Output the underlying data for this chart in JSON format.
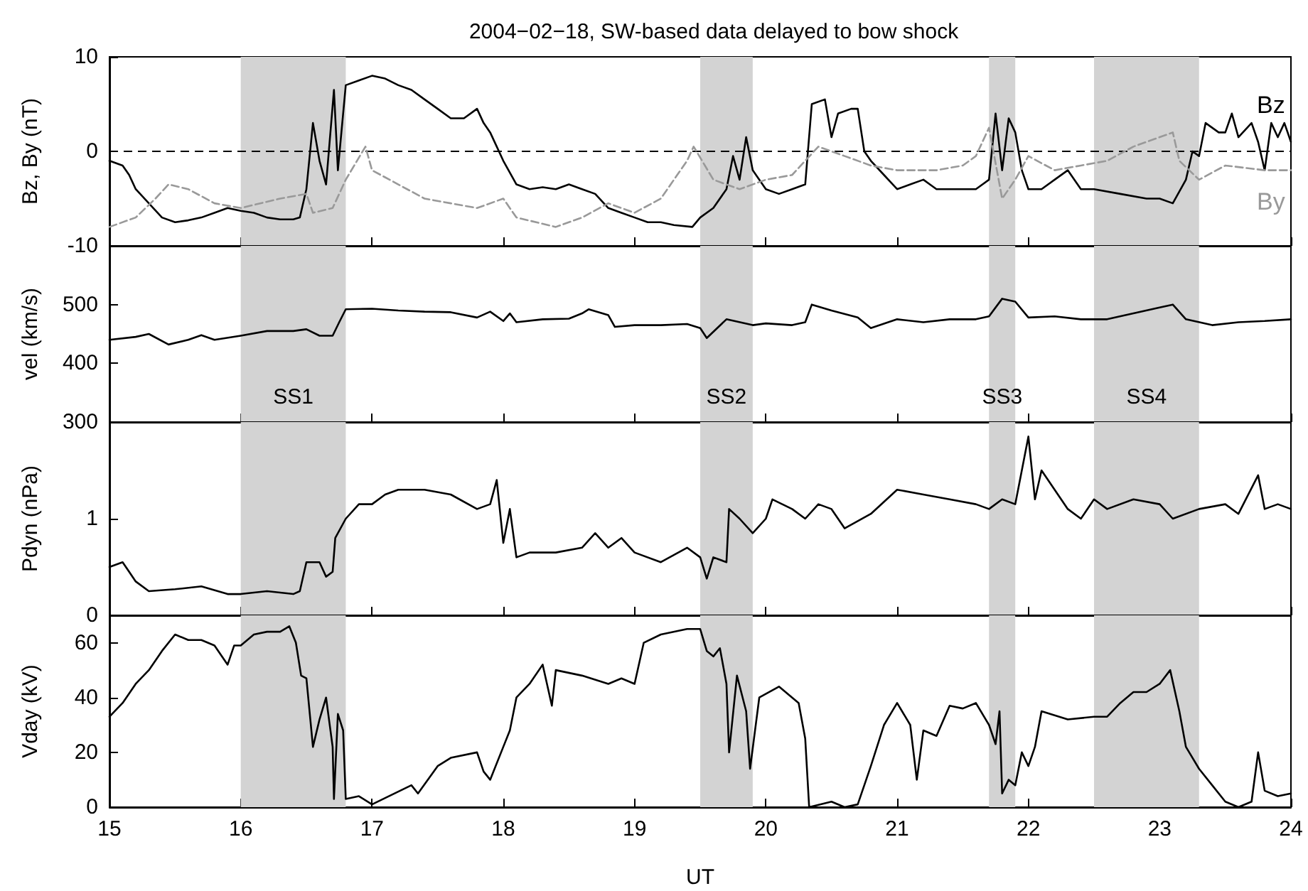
{
  "chart_data": [
    {
      "type": "line",
      "title": "2004−02−18, SW-based data delayed to bow shock",
      "ylabel": "Bz, By (nT)",
      "xlim": [
        15,
        24
      ],
      "xticks": [
        15,
        16,
        17,
        18,
        19,
        20,
        21,
        22,
        23,
        24
      ],
      "ylim": [
        -10,
        10
      ],
      "yticks": [
        -10,
        0,
        10
      ],
      "tick_labels": "y",
      "ref_lines": [
        {
          "axis": "y",
          "value": 0,
          "color": "#000000",
          "line_style": "dashed"
        }
      ],
      "bands": [
        {
          "axis": "x",
          "from": 16.0,
          "to": 16.8,
          "color": "#d3d3d3"
        },
        {
          "axis": "x",
          "from": 19.5,
          "to": 19.9,
          "color": "#d3d3d3"
        },
        {
          "axis": "x",
          "from": 21.7,
          "to": 21.9,
          "color": "#d3d3d3"
        },
        {
          "axis": "x",
          "from": 22.5,
          "to": 23.3,
          "color": "#d3d3d3"
        }
      ],
      "series": [
        {
          "name": "Bz",
          "color": "#000000",
          "x": [
            15.0,
            15.1,
            15.15,
            15.2,
            15.3,
            15.4,
            15.5,
            15.6,
            15.7,
            15.8,
            15.9,
            16.0,
            16.1,
            16.2,
            16.3,
            16.4,
            16.45,
            16.5,
            16.55,
            16.6,
            16.65,
            16.71,
            16.74,
            16.8,
            16.9,
            17.0,
            17.1,
            17.2,
            17.3,
            17.4,
            17.5,
            17.6,
            17.7,
            17.8,
            17.85,
            17.9,
            18.0,
            18.1,
            18.2,
            18.3,
            18.4,
            18.5,
            18.6,
            18.7,
            18.8,
            18.9,
            19.0,
            19.1,
            19.2,
            19.3,
            19.44,
            19.5,
            19.6,
            19.7,
            19.75,
            19.8,
            19.85,
            19.9,
            20.0,
            20.1,
            20.2,
            20.3,
            20.35,
            20.45,
            20.5,
            20.55,
            20.65,
            20.7,
            20.75,
            20.8,
            20.9,
            21.0,
            21.1,
            21.2,
            21.3,
            21.5,
            21.6,
            21.7,
            21.75,
            21.8,
            21.85,
            21.9,
            21.95,
            22.0,
            22.1,
            22.2,
            22.3,
            22.4,
            22.5,
            22.7,
            22.9,
            23.0,
            23.1,
            23.2,
            23.25,
            23.3,
            23.35,
            23.45,
            23.5,
            23.55,
            23.6,
            23.7,
            23.75,
            23.8,
            23.85,
            23.9,
            23.95,
            24.0
          ],
          "values": [
            -1,
            -1.5,
            -2.5,
            -4,
            -5.5,
            -7,
            -7.5,
            -7.3,
            -7,
            -6.5,
            -6,
            -6.3,
            -6.5,
            -7,
            -7.2,
            -7.2,
            -7,
            -4,
            3,
            -1,
            -3.5,
            6.5,
            -2,
            7,
            7.5,
            8,
            7.7,
            7,
            6.5,
            5.5,
            4.5,
            3.5,
            3.5,
            4.5,
            3,
            2,
            -1,
            -3.5,
            -4,
            -3.8,
            -4,
            -3.5,
            -4,
            -4.5,
            -6,
            -6.5,
            -7,
            -7.5,
            -7.5,
            -7.8,
            -8,
            -7,
            -6,
            -4,
            -0.5,
            -3,
            1.5,
            -2,
            -4,
            -4.5,
            -4,
            -3.5,
            5,
            5.5,
            1.5,
            4,
            4.5,
            4.5,
            0,
            -1,
            -2.5,
            -4,
            -3.5,
            -3,
            -4,
            -4,
            -4,
            -3,
            4,
            -2,
            3.5,
            2,
            -2,
            -4,
            -4,
            -3,
            -2,
            -4,
            -4,
            -4.5,
            -5,
            -5,
            -5.5,
            -3,
            0,
            -0.5,
            3,
            2,
            2,
            4,
            1.5,
            3,
            1,
            -2,
            3,
            1.5,
            3,
            1
          ]
        },
        {
          "name": "By",
          "color": "#999999",
          "line_style": "dashed",
          "x": [
            15.0,
            15.2,
            15.35,
            15.45,
            15.6,
            15.8,
            16.0,
            16.3,
            16.5,
            16.55,
            16.7,
            16.8,
            16.95,
            17.0,
            17.2,
            17.4,
            17.6,
            17.8,
            18.0,
            18.1,
            18.4,
            18.6,
            18.8,
            19.0,
            19.2,
            19.4,
            19.45,
            19.6,
            19.8,
            20.0,
            20.2,
            20.3,
            20.4,
            20.6,
            20.8,
            21.0,
            21.3,
            21.5,
            21.6,
            21.7,
            21.8,
            21.9,
            22.0,
            22.2,
            22.4,
            22.6,
            22.8,
            23.0,
            23.1,
            23.15,
            23.3,
            23.5,
            23.8,
            24.0
          ],
          "values": [
            -8,
            -7,
            -5,
            -3.5,
            -4,
            -5.5,
            -6,
            -5,
            -4.5,
            -6.5,
            -6,
            -3,
            0.5,
            -2,
            -3.5,
            -5,
            -5.5,
            -6,
            -5,
            -7,
            -8,
            -7,
            -5.5,
            -6.5,
            -5,
            -1,
            0.5,
            -3,
            -4,
            -3,
            -2.5,
            -1,
            0.5,
            -0.5,
            -1.5,
            -2,
            -2,
            -1.5,
            -0.5,
            2.5,
            -5,
            -3,
            -0.5,
            -2,
            -1.5,
            -1,
            0.5,
            1.5,
            2,
            -1,
            -3,
            -1.5,
            -2,
            -2
          ]
        }
      ]
    },
    {
      "type": "line",
      "ylabel": "vel (km/s)",
      "xlim": [
        15,
        24
      ],
      "xticks": [
        15,
        16,
        17,
        18,
        19,
        20,
        21,
        22,
        23,
        24
      ],
      "ylim": [
        300,
        600
      ],
      "yticks": [
        300,
        400,
        500
      ],
      "tick_labels": "y",
      "bands": [
        {
          "axis": "x",
          "from": 16.0,
          "to": 16.8,
          "label": "SS1",
          "color": "#d3d3d3"
        },
        {
          "axis": "x",
          "from": 19.5,
          "to": 19.9,
          "label": "SS2",
          "color": "#d3d3d3"
        },
        {
          "axis": "x",
          "from": 21.7,
          "to": 21.9,
          "label": "SS3",
          "color": "#d3d3d3"
        },
        {
          "axis": "x",
          "from": 22.5,
          "to": 23.3,
          "label": "SS4",
          "color": "#d3d3d3"
        }
      ],
      "series": [
        {
          "color": "#000000",
          "x": [
            15.0,
            15.2,
            15.3,
            15.45,
            15.6,
            15.7,
            15.8,
            16.0,
            16.2,
            16.4,
            16.5,
            16.6,
            16.7,
            16.75,
            16.8,
            17.0,
            17.2,
            17.4,
            17.6,
            17.8,
            17.9,
            18.0,
            18.05,
            18.1,
            18.3,
            18.5,
            18.6,
            18.65,
            18.8,
            18.85,
            19.0,
            19.2,
            19.4,
            19.5,
            19.55,
            19.7,
            19.9,
            20.0,
            20.2,
            20.3,
            20.35,
            20.5,
            20.7,
            20.8,
            21.0,
            21.2,
            21.4,
            21.6,
            21.7,
            21.8,
            21.9,
            22.0,
            22.2,
            22.4,
            22.6,
            22.8,
            23.0,
            23.1,
            23.2,
            23.4,
            23.6,
            23.8,
            24.0
          ],
          "values": [
            440,
            445,
            450,
            432,
            440,
            448,
            440,
            447,
            455,
            455,
            458,
            447,
            447,
            470,
            492,
            493,
            490,
            488,
            487,
            478,
            488,
            472,
            485,
            470,
            475,
            476,
            485,
            492,
            482,
            462,
            465,
            465,
            467,
            460,
            443,
            475,
            465,
            468,
            465,
            470,
            500,
            490,
            478,
            460,
            475,
            470,
            475,
            475,
            480,
            510,
            505,
            478,
            480,
            475,
            475,
            485,
            495,
            500,
            475,
            465,
            470,
            472,
            475
          ]
        }
      ]
    },
    {
      "type": "line",
      "ylabel": "Pdyn (nPa)",
      "xlim": [
        15,
        24
      ],
      "xticks": [
        15,
        16,
        17,
        18,
        19,
        20,
        21,
        22,
        23,
        24
      ],
      "ylim": [
        0,
        2
      ],
      "yticks": [
        0,
        1
      ],
      "tick_labels": "y",
      "bands": [
        {
          "axis": "x",
          "from": 16.0,
          "to": 16.8,
          "color": "#d3d3d3"
        },
        {
          "axis": "x",
          "from": 19.5,
          "to": 19.9,
          "color": "#d3d3d3"
        },
        {
          "axis": "x",
          "from": 21.7,
          "to": 21.9,
          "color": "#d3d3d3"
        },
        {
          "axis": "x",
          "from": 22.5,
          "to": 23.3,
          "color": "#d3d3d3"
        }
      ],
      "series": [
        {
          "color": "#000000",
          "x": [
            15.0,
            15.1,
            15.15,
            15.2,
            15.3,
            15.5,
            15.7,
            15.9,
            16.0,
            16.2,
            16.4,
            16.45,
            16.5,
            16.6,
            16.65,
            16.7,
            16.72,
            16.8,
            16.9,
            17.0,
            17.1,
            17.2,
            17.4,
            17.6,
            17.8,
            17.9,
            17.95,
            18.0,
            18.05,
            18.1,
            18.2,
            18.4,
            18.6,
            18.7,
            18.8,
            18.9,
            19.0,
            19.2,
            19.4,
            19.5,
            19.55,
            19.6,
            19.7,
            19.72,
            19.8,
            19.9,
            20.0,
            20.05,
            20.2,
            20.3,
            20.4,
            20.5,
            20.6,
            20.8,
            21.0,
            21.2,
            21.4,
            21.6,
            21.7,
            21.8,
            21.9,
            22.0,
            22.05,
            22.1,
            22.2,
            22.3,
            22.4,
            22.5,
            22.6,
            22.8,
            23.0,
            23.1,
            23.3,
            23.5,
            23.6,
            23.75,
            23.8,
            23.9,
            24.0
          ],
          "values": [
            0.5,
            0.55,
            0.45,
            0.35,
            0.25,
            0.27,
            0.3,
            0.22,
            0.22,
            0.25,
            0.22,
            0.25,
            0.55,
            0.55,
            0.4,
            0.45,
            0.8,
            1.0,
            1.15,
            1.15,
            1.25,
            1.3,
            1.3,
            1.25,
            1.1,
            1.15,
            1.4,
            0.75,
            1.1,
            0.6,
            0.65,
            0.65,
            0.7,
            0.85,
            0.7,
            0.8,
            0.65,
            0.55,
            0.7,
            0.6,
            0.38,
            0.6,
            0.55,
            1.1,
            1.0,
            0.85,
            1.0,
            1.2,
            1.1,
            1.0,
            1.15,
            1.1,
            0.9,
            1.05,
            1.3,
            1.25,
            1.2,
            1.15,
            1.1,
            1.2,
            1.15,
            1.85,
            1.2,
            1.5,
            1.3,
            1.1,
            1.0,
            1.2,
            1.1,
            1.2,
            1.15,
            1.0,
            1.1,
            1.15,
            1.05,
            1.45,
            1.1,
            1.15,
            1.1
          ]
        }
      ]
    },
    {
      "type": "line",
      "ylabel": "Vday (kV)",
      "xlabel": "UT",
      "xlim": [
        15,
        24
      ],
      "xticks": [
        15,
        16,
        17,
        18,
        19,
        20,
        21,
        22,
        23,
        24
      ],
      "ylim": [
        0,
        70
      ],
      "yticks": [
        0,
        20,
        40,
        60
      ],
      "bands": [
        {
          "axis": "x",
          "from": 16.0,
          "to": 16.8,
          "color": "#d3d3d3"
        },
        {
          "axis": "x",
          "from": 19.5,
          "to": 19.9,
          "color": "#d3d3d3"
        },
        {
          "axis": "x",
          "from": 21.7,
          "to": 21.9,
          "color": "#d3d3d3"
        },
        {
          "axis": "x",
          "from": 22.5,
          "to": 23.3,
          "color": "#d3d3d3"
        }
      ],
      "series": [
        {
          "color": "#000000",
          "x": [
            15.0,
            15.1,
            15.2,
            15.3,
            15.4,
            15.5,
            15.6,
            15.7,
            15.8,
            15.9,
            15.95,
            16.0,
            16.1,
            16.2,
            16.3,
            16.37,
            16.42,
            16.46,
            16.5,
            16.55,
            16.6,
            16.65,
            16.7,
            16.71,
            16.74,
            16.78,
            16.8,
            16.9,
            17.0,
            17.3,
            17.35,
            17.5,
            17.6,
            17.8,
            17.85,
            17.9,
            18.0,
            18.05,
            18.1,
            18.2,
            18.3,
            18.37,
            18.4,
            18.6,
            18.8,
            18.9,
            19.0,
            19.07,
            19.2,
            19.4,
            19.5,
            19.55,
            19.6,
            19.65,
            19.7,
            19.72,
            19.78,
            19.85,
            19.88,
            19.95,
            20.1,
            20.2,
            20.25,
            20.3,
            20.33,
            20.5,
            20.6,
            20.7,
            20.8,
            20.9,
            21.0,
            21.1,
            21.15,
            21.2,
            21.3,
            21.4,
            21.5,
            21.6,
            21.7,
            21.75,
            21.78,
            21.8,
            21.85,
            21.9,
            21.95,
            22.0,
            22.05,
            22.1,
            22.3,
            22.5,
            22.6,
            22.7,
            22.8,
            22.9,
            23.0,
            23.08,
            23.15,
            23.2,
            23.3,
            23.4,
            23.5,
            23.6,
            23.7,
            23.75,
            23.8,
            23.9,
            24.0
          ],
          "values": [
            33,
            38,
            45,
            50,
            57,
            63,
            61,
            61,
            59,
            52,
            59,
            59,
            63,
            64,
            64,
            66,
            60,
            48,
            47,
            22,
            32,
            40,
            22,
            3,
            34,
            28,
            3,
            4,
            1,
            8,
            5,
            15,
            18,
            20,
            13,
            10,
            22,
            28,
            40,
            45,
            52,
            37,
            50,
            48,
            45,
            47,
            45,
            60,
            63,
            65,
            65,
            57,
            55,
            58,
            45,
            20,
            48,
            35,
            14,
            40,
            44,
            40,
            38,
            25,
            0,
            2,
            0,
            1,
            15,
            30,
            38,
            30,
            10,
            28,
            26,
            37,
            36,
            38,
            30,
            23,
            35,
            5,
            10,
            8,
            20,
            15,
            22,
            35,
            32,
            33,
            33,
            38,
            42,
            42,
            45,
            50,
            35,
            22,
            14,
            8,
            2,
            0,
            2,
            20,
            6,
            4,
            5
          ]
        }
      ]
    }
  ]
}
